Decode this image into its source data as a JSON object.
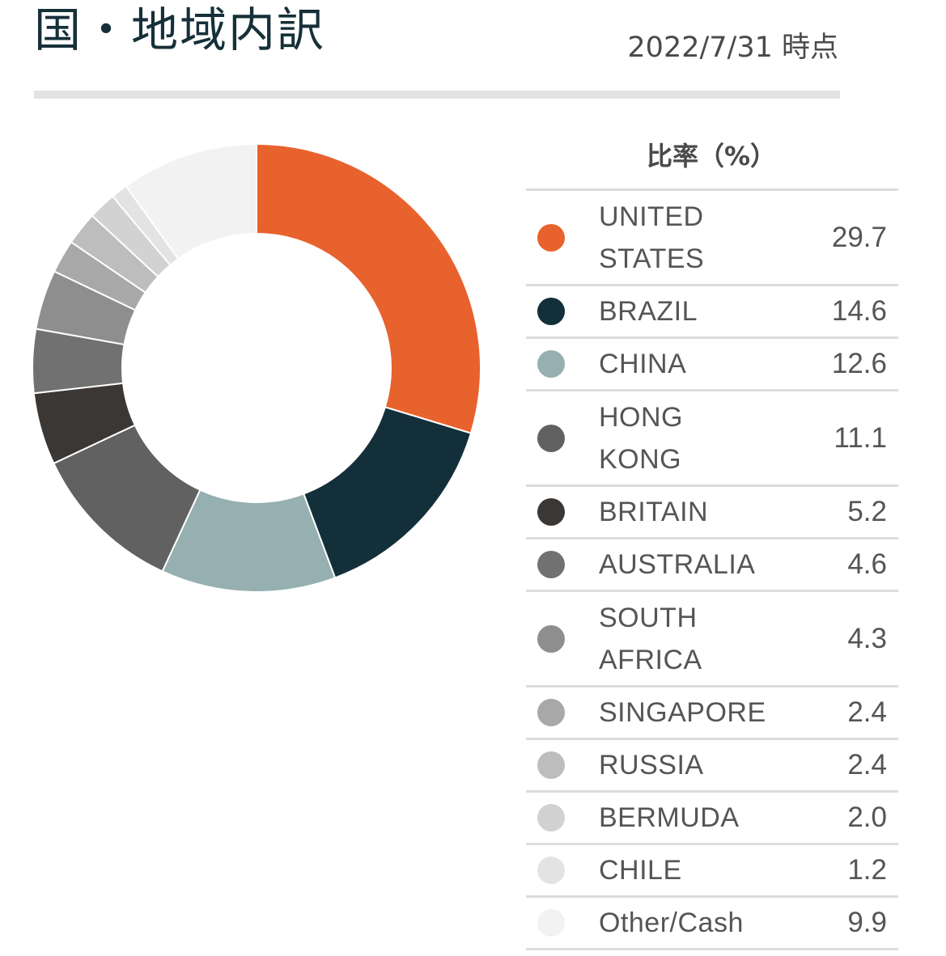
{
  "header": {
    "title": "国・地域内訳",
    "as_of": "2022/7/31 時点"
  },
  "table": {
    "header": "比率（%）"
  },
  "chart_data": {
    "type": "pie",
    "donut": true,
    "title": "国・地域内訳",
    "legend_placement": "right",
    "categories": [
      "UNITED STATES",
      "BRAZIL",
      "CHINA",
      "HONG KONG",
      "BRITAIN",
      "AUSTRALIA",
      "SOUTH AFRICA",
      "SINGAPORE",
      "RUSSIA",
      "BERMUDA",
      "CHILE",
      "Other/Cash"
    ],
    "labels": [
      [
        "UNITED",
        "STATES"
      ],
      [
        "BRAZIL"
      ],
      [
        "CHINA"
      ],
      [
        "HONG",
        "KONG"
      ],
      [
        "BRITAIN"
      ],
      [
        "AUSTRALIA"
      ],
      [
        "SOUTH",
        "AFRICA"
      ],
      [
        "SINGAPORE"
      ],
      [
        "RUSSIA"
      ],
      [
        "BERMUDA"
      ],
      [
        "CHILE"
      ],
      [
        "Other/Cash"
      ]
    ],
    "values": [
      29.7,
      14.6,
      12.6,
      11.1,
      5.2,
      4.6,
      4.3,
      2.4,
      2.4,
      2.0,
      1.2,
      9.9
    ],
    "value_labels": [
      "29.7",
      "14.6",
      "12.6",
      "11.1",
      "5.2",
      "4.6",
      "4.3",
      "2.4",
      "2.4",
      "2.0",
      "1.2",
      "9.9"
    ],
    "colors": [
      "#e8622d",
      "#132f3a",
      "#96afb0",
      "#616161",
      "#3b3735",
      "#717171",
      "#8e8e8e",
      "#a8a8a8",
      "#bdbdbd",
      "#d2d2d2",
      "#e3e3e3",
      "#f2f2f2"
    ]
  }
}
